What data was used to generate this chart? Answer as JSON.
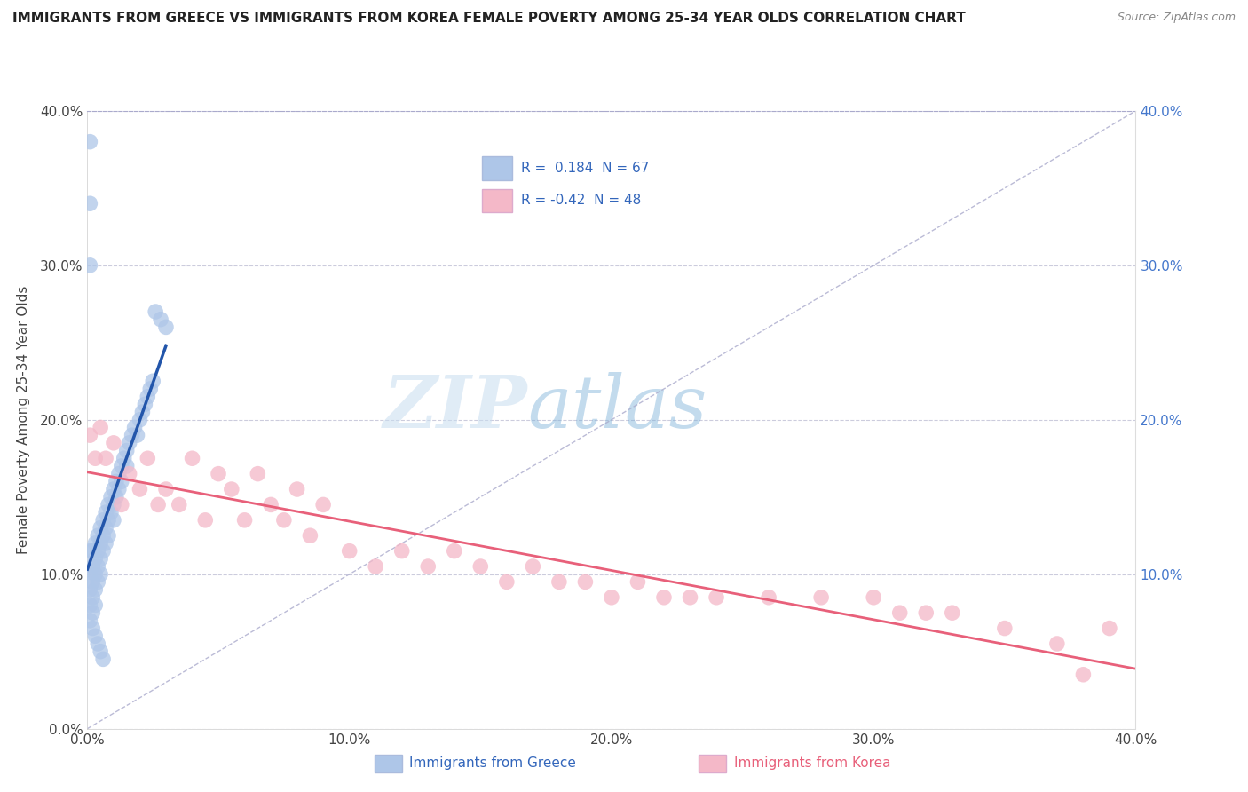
{
  "title": "IMMIGRANTS FROM GREECE VS IMMIGRANTS FROM KOREA FEMALE POVERTY AMONG 25-34 YEAR OLDS CORRELATION CHART",
  "source": "Source: ZipAtlas.com",
  "ylabel": "Female Poverty Among 25-34 Year Olds",
  "R_greece": 0.184,
  "N_greece": 67,
  "R_korea": -0.42,
  "N_korea": 48,
  "greece_color": "#aec6e8",
  "korea_color": "#f4b8c8",
  "greece_line_color": "#2255aa",
  "korea_line_color": "#e8607a",
  "watermark_zip": "ZIP",
  "watermark_atlas": "atlas",
  "xlim": [
    0.0,
    0.4
  ],
  "ylim": [
    0.0,
    0.4
  ],
  "greece_scatter_x": [
    0.001,
    0.001,
    0.001,
    0.001,
    0.001,
    0.001,
    0.001,
    0.002,
    0.002,
    0.002,
    0.002,
    0.002,
    0.003,
    0.003,
    0.003,
    0.003,
    0.003,
    0.004,
    0.004,
    0.004,
    0.004,
    0.005,
    0.005,
    0.005,
    0.005,
    0.006,
    0.006,
    0.006,
    0.007,
    0.007,
    0.007,
    0.008,
    0.008,
    0.008,
    0.009,
    0.009,
    0.01,
    0.01,
    0.01,
    0.011,
    0.011,
    0.012,
    0.012,
    0.013,
    0.013,
    0.014,
    0.015,
    0.015,
    0.016,
    0.017,
    0.018,
    0.019,
    0.02,
    0.021,
    0.022,
    0.023,
    0.024,
    0.025,
    0.026,
    0.028,
    0.03,
    0.001,
    0.002,
    0.003,
    0.004,
    0.005,
    0.006
  ],
  "greece_scatter_y": [
    0.38,
    0.34,
    0.3,
    0.115,
    0.1,
    0.09,
    0.08,
    0.115,
    0.105,
    0.095,
    0.085,
    0.075,
    0.12,
    0.11,
    0.1,
    0.09,
    0.08,
    0.125,
    0.115,
    0.105,
    0.095,
    0.13,
    0.12,
    0.11,
    0.1,
    0.135,
    0.125,
    0.115,
    0.14,
    0.13,
    0.12,
    0.145,
    0.135,
    0.125,
    0.15,
    0.14,
    0.155,
    0.145,
    0.135,
    0.16,
    0.15,
    0.165,
    0.155,
    0.17,
    0.16,
    0.175,
    0.18,
    0.17,
    0.185,
    0.19,
    0.195,
    0.19,
    0.2,
    0.205,
    0.21,
    0.215,
    0.22,
    0.225,
    0.27,
    0.265,
    0.26,
    0.07,
    0.065,
    0.06,
    0.055,
    0.05,
    0.045
  ],
  "korea_scatter_x": [
    0.001,
    0.003,
    0.005,
    0.007,
    0.01,
    0.013,
    0.016,
    0.02,
    0.023,
    0.027,
    0.03,
    0.035,
    0.04,
    0.045,
    0.05,
    0.055,
    0.06,
    0.065,
    0.07,
    0.075,
    0.08,
    0.085,
    0.09,
    0.1,
    0.11,
    0.12,
    0.13,
    0.14,
    0.15,
    0.16,
    0.17,
    0.18,
    0.19,
    0.2,
    0.21,
    0.22,
    0.23,
    0.24,
    0.26,
    0.28,
    0.3,
    0.31,
    0.32,
    0.33,
    0.35,
    0.37,
    0.38,
    0.39
  ],
  "korea_scatter_y": [
    0.19,
    0.175,
    0.195,
    0.175,
    0.185,
    0.145,
    0.165,
    0.155,
    0.175,
    0.145,
    0.155,
    0.145,
    0.175,
    0.135,
    0.165,
    0.155,
    0.135,
    0.165,
    0.145,
    0.135,
    0.155,
    0.125,
    0.145,
    0.115,
    0.105,
    0.115,
    0.105,
    0.115,
    0.105,
    0.095,
    0.105,
    0.095,
    0.095,
    0.085,
    0.095,
    0.085,
    0.085,
    0.085,
    0.085,
    0.085,
    0.085,
    0.075,
    0.075,
    0.075,
    0.065,
    0.055,
    0.035,
    0.065
  ]
}
